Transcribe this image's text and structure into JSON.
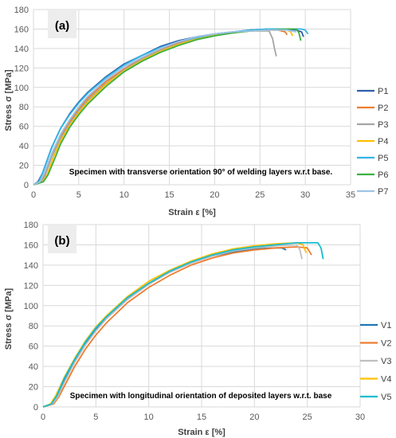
{
  "chart_data": [
    {
      "type": "line",
      "panel_label": "(a)",
      "annotation": "Specimen with transverse orientation 90° of welding layers w.r.t base.",
      "xlabel": "Strain ε [%]",
      "ylabel": "Stress σ [MPa]",
      "xlim": [
        0,
        35
      ],
      "ylim": [
        0,
        180
      ],
      "xticks": [
        "0",
        "5",
        "10",
        "15",
        "20",
        "25",
        "30",
        "35"
      ],
      "yticks": [
        "0",
        "20",
        "40",
        "60",
        "80",
        "100",
        "120",
        "140",
        "160",
        "180"
      ],
      "grid": true,
      "legend_position": "right",
      "series": [
        {
          "name": "P1",
          "color": "#2E5FA8",
          "x": [
            0,
            0.5,
            1,
            1.5,
            2,
            3,
            4,
            5,
            6,
            8,
            10,
            12,
            14,
            16,
            18,
            20,
            22,
            24,
            26,
            28,
            29,
            29.6,
            29.8
          ],
          "y": [
            0,
            3,
            12,
            25,
            38,
            58,
            73,
            85,
            95,
            111,
            124,
            133,
            142,
            148,
            152,
            155,
            157,
            159,
            160,
            160,
            159,
            157,
            152
          ]
        },
        {
          "name": "P2",
          "color": "#ED7D31",
          "x": [
            0,
            0.8,
            1.2,
            2,
            3,
            4,
            5,
            6,
            8,
            10,
            12,
            14,
            16,
            18,
            20,
            22,
            24,
            26,
            27,
            27.8,
            28
          ],
          "y": [
            0,
            3,
            10,
            30,
            50,
            65,
            78,
            89,
            106,
            119,
            130,
            139,
            146,
            151,
            155,
            157,
            158,
            159,
            159,
            157,
            154
          ]
        },
        {
          "name": "P3",
          "color": "#A5A5A5",
          "x": [
            0,
            0.9,
            1.3,
            2,
            3,
            4,
            5,
            6,
            8,
            10,
            12,
            14,
            16,
            18,
            20,
            22,
            24,
            26,
            26.4,
            26.6,
            26.8
          ],
          "y": [
            0,
            3,
            10,
            28,
            48,
            63,
            76,
            87,
            104,
            118,
            129,
            138,
            145,
            150,
            154,
            157,
            158,
            158,
            150,
            140,
            132
          ]
        },
        {
          "name": "P4",
          "color": "#FFC000",
          "x": [
            0,
            1,
            1.5,
            2.2,
            3,
            4,
            5,
            6,
            8,
            10,
            12,
            14,
            16,
            18,
            20,
            22,
            24,
            26,
            28,
            28.4,
            28.6
          ],
          "y": [
            0,
            3,
            10,
            28,
            45,
            61,
            74,
            85,
            103,
            117,
            128,
            137,
            144,
            150,
            154,
            156,
            158,
            159,
            159,
            157,
            153
          ]
        },
        {
          "name": "P5",
          "color": "#33B5E5",
          "x": [
            0,
            0.6,
            1,
            1.6,
            2.2,
            3,
            4,
            5,
            6,
            8,
            10,
            12,
            14,
            16,
            18,
            20,
            22,
            24,
            26,
            28,
            29.5,
            30,
            30.3
          ],
          "y": [
            0,
            3,
            12,
            28,
            42,
            58,
            72,
            84,
            94,
            110,
            123,
            133,
            141,
            147,
            151,
            155,
            157,
            159,
            160,
            160,
            160,
            159,
            155
          ]
        },
        {
          "name": "P6",
          "color": "#3CB043",
          "x": [
            0,
            1.1,
            1.6,
            2.4,
            3,
            4,
            5,
            6,
            8,
            10,
            12,
            14,
            16,
            18,
            20,
            22,
            24,
            26,
            28,
            29,
            29.3,
            29.5
          ],
          "y": [
            0,
            3,
            10,
            28,
            42,
            59,
            72,
            83,
            101,
            116,
            127,
            136,
            143,
            149,
            153,
            156,
            158,
            159,
            160,
            160,
            156,
            148
          ]
        },
        {
          "name": "P7",
          "color": "#9DC3E6",
          "x": [
            0,
            0.7,
            1.2,
            2,
            3,
            4,
            5,
            6,
            8,
            10,
            12,
            14,
            16,
            18,
            20,
            22,
            24,
            26,
            28,
            29
          ],
          "y": [
            0,
            3,
            12,
            32,
            52,
            67,
            80,
            91,
            108,
            121,
            131,
            140,
            147,
            152,
            155,
            157,
            158,
            159,
            159,
            157
          ]
        }
      ]
    },
    {
      "type": "line",
      "panel_label": "(b)",
      "annotation": "Specimen with longitudinal orientation of deposited layers w.r.t. base",
      "xlabel": "Strain ε [%]",
      "ylabel": "Stress σ [MPa]",
      "xlim": [
        0,
        30
      ],
      "ylim": [
        0,
        180
      ],
      "xticks": [
        "0",
        "5",
        "10",
        "15",
        "20",
        "25",
        "30"
      ],
      "yticks": [
        "0",
        "20",
        "40",
        "60",
        "80",
        "100",
        "120",
        "140",
        "160",
        "180"
      ],
      "grid": true,
      "legend_position": "right",
      "series": [
        {
          "name": "V1",
          "color": "#1F77B4",
          "x": [
            0,
            0.8,
            1.3,
            2,
            3,
            4,
            5,
            6,
            8,
            10,
            12,
            14,
            16,
            18,
            20,
            22,
            22.6,
            23
          ],
          "y": [
            0,
            3,
            10,
            26,
            45,
            62,
            76,
            88,
            107,
            122,
            133,
            142,
            149,
            153,
            156,
            157,
            157,
            155
          ]
        },
        {
          "name": "V2",
          "color": "#ED7D31",
          "x": [
            0,
            1,
            1.5,
            2.3,
            3,
            4,
            5,
            6,
            8,
            10,
            12,
            14,
            16,
            18,
            20,
            22,
            24,
            25,
            25.4
          ],
          "y": [
            0,
            3,
            10,
            26,
            40,
            57,
            71,
            83,
            103,
            118,
            130,
            140,
            147,
            152,
            155,
            157,
            158,
            157,
            150
          ]
        },
        {
          "name": "V3",
          "color": "#BFBFBF",
          "x": [
            0,
            0.9,
            1.4,
            2.1,
            3,
            4,
            5,
            6,
            8,
            10,
            12,
            14,
            16,
            18,
            20,
            22,
            24,
            24.3,
            24.5
          ],
          "y": [
            0,
            3,
            10,
            26,
            44,
            61,
            75,
            87,
            106,
            121,
            133,
            142,
            149,
            154,
            157,
            159,
            160,
            155,
            146
          ]
        },
        {
          "name": "V4",
          "color": "#FFC000",
          "x": [
            0,
            0.7,
            1.2,
            2,
            3,
            4,
            5,
            6,
            8,
            10,
            12,
            14,
            16,
            18,
            20,
            22,
            24,
            24.6,
            24.9
          ],
          "y": [
            0,
            3,
            11,
            29,
            48,
            65,
            79,
            90,
            109,
            124,
            135,
            144,
            151,
            156,
            159,
            161,
            162,
            160,
            152
          ]
        },
        {
          "name": "V5",
          "color": "#17BECF",
          "x": [
            0,
            0.8,
            1.3,
            2,
            3,
            4,
            5,
            6,
            8,
            10,
            12,
            14,
            16,
            18,
            20,
            22,
            24,
            26,
            26.3,
            26.5
          ],
          "y": [
            0,
            3,
            11,
            28,
            47,
            64,
            78,
            89,
            108,
            122,
            134,
            143,
            150,
            155,
            158,
            160,
            162,
            162,
            157,
            146
          ]
        }
      ]
    }
  ]
}
